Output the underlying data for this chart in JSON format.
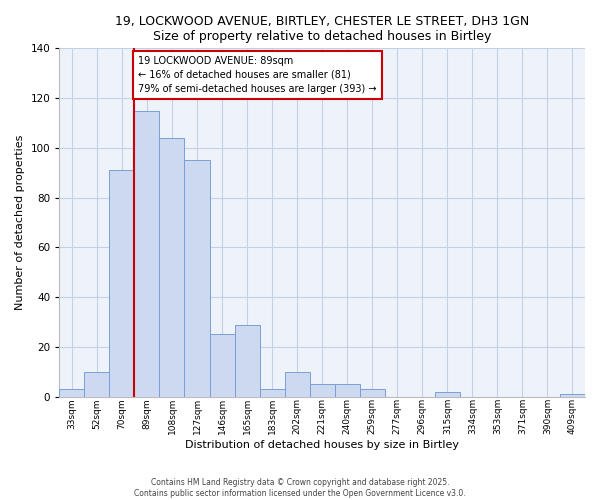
{
  "title1": "19, LOCKWOOD AVENUE, BIRTLEY, CHESTER LE STREET, DH3 1GN",
  "title2": "Size of property relative to detached houses in Birtley",
  "xlabel": "Distribution of detached houses by size in Birtley",
  "ylabel": "Number of detached properties",
  "bin_labels": [
    "33sqm",
    "52sqm",
    "70sqm",
    "89sqm",
    "108sqm",
    "127sqm",
    "146sqm",
    "165sqm",
    "183sqm",
    "202sqm",
    "221sqm",
    "240sqm",
    "259sqm",
    "277sqm",
    "296sqm",
    "315sqm",
    "334sqm",
    "353sqm",
    "371sqm",
    "390sqm",
    "409sqm"
  ],
  "bar_heights": [
    3,
    10,
    91,
    115,
    104,
    95,
    25,
    29,
    3,
    10,
    5,
    5,
    3,
    0,
    0,
    2,
    0,
    0,
    0,
    0,
    1
  ],
  "bar_color": "#ccd9f0",
  "bar_edge_color": "#7a9fd4",
  "vline_x": 2.5,
  "vline_color": "#cc0000",
  "annotation_title": "19 LOCKWOOD AVENUE: 89sqm",
  "annotation_line1": "← 16% of detached houses are smaller (81)",
  "annotation_line2": "79% of semi-detached houses are larger (393) →",
  "annotation_box_color": "#ffffff",
  "annotation_box_edge": "#cc0000",
  "ylim": [
    0,
    140
  ],
  "yticks": [
    0,
    20,
    40,
    60,
    80,
    100,
    120,
    140
  ],
  "footer1": "Contains HM Land Registry data © Crown copyright and database right 2025.",
  "footer2": "Contains public sector information licensed under the Open Government Licence v3.0.",
  "bg_color": "#eef3fb"
}
